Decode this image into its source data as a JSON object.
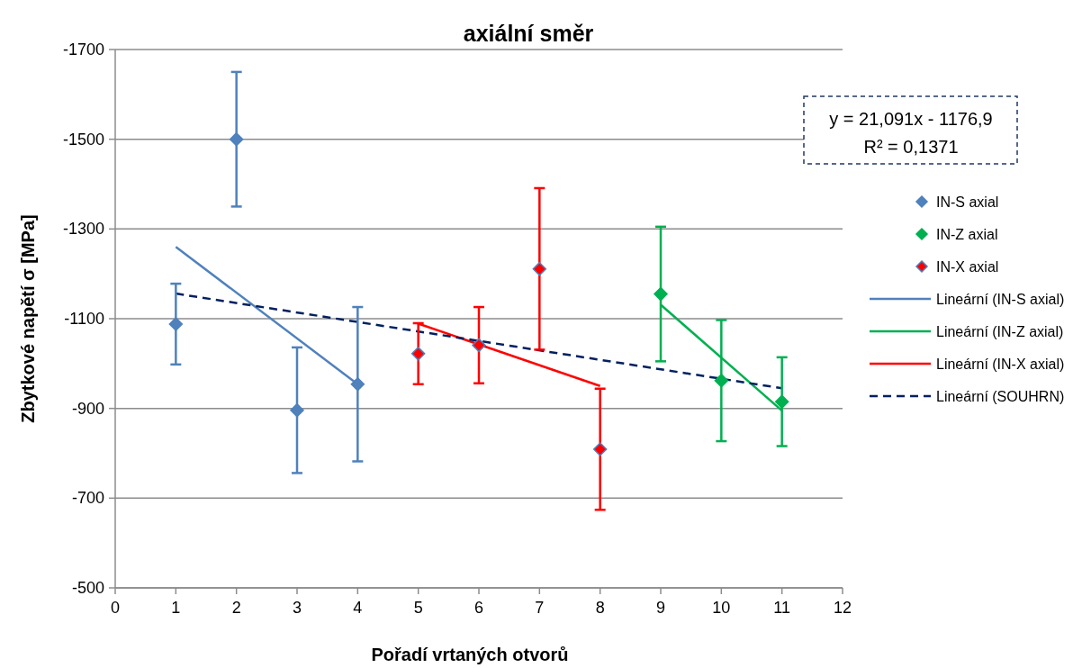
{
  "chart_data": {
    "type": "scatter",
    "title": "axiální směr",
    "xlabel": "Pořadí vrtaných otvorů",
    "ylabel": "Zbytkové napětí σ [MPa]",
    "xlim": [
      0,
      12
    ],
    "xticks": [
      0,
      1,
      2,
      3,
      4,
      5,
      6,
      7,
      8,
      9,
      10,
      11,
      12
    ],
    "ylim": [
      -500,
      -1700
    ],
    "yticks": [
      -500,
      -700,
      -900,
      -1100,
      -1300,
      -1500,
      -1700
    ],
    "grid": "y",
    "legend": "right",
    "line_style": "solid",
    "annotations": [
      "y = 21,091x - 1176,9",
      "R² = 0,1371"
    ],
    "series": [
      {
        "name": "IN-S axial",
        "marker": "diamond",
        "color": "#4f81bd",
        "x": [
          1,
          2,
          3,
          4
        ],
        "values": [
          -1088,
          -1500,
          -896,
          -954
        ],
        "errors": [
          90,
          150,
          140,
          172
        ]
      },
      {
        "name": "IN-Z axial",
        "marker": "diamond",
        "color": "#00b050",
        "x": [
          9,
          10,
          11
        ],
        "values": [
          -1155,
          -962,
          -915
        ],
        "errors": [
          150,
          135,
          99
        ]
      },
      {
        "name": "IN-X axial",
        "marker": "diamond",
        "color": "#ff0000",
        "x": [
          5,
          6,
          7,
          8
        ],
        "values": [
          -1022,
          -1041,
          -1211,
          -809
        ],
        "errors": [
          68,
          85,
          180,
          135
        ]
      },
      {
        "name": "Lineární (IN-S axial)",
        "type": "line",
        "color": "#4f81bd",
        "x": [
          1,
          4
        ],
        "values": [
          -1260,
          -954
        ]
      },
      {
        "name": "Lineární (IN-Z axial)",
        "type": "line",
        "color": "#00b050",
        "x": [
          9,
          11
        ],
        "values": [
          -1131,
          -895
        ]
      },
      {
        "name": "Lineární (IN-X axial)",
        "type": "line",
        "color": "#ff0000",
        "x": [
          5,
          8
        ],
        "values": [
          -1089,
          -950
        ]
      },
      {
        "name": "Lineární (SOUHRN)",
        "type": "line",
        "color": "#002060",
        "line_style": "dashed",
        "x": [
          1,
          11
        ],
        "values": [
          -1156,
          -945
        ]
      }
    ]
  }
}
